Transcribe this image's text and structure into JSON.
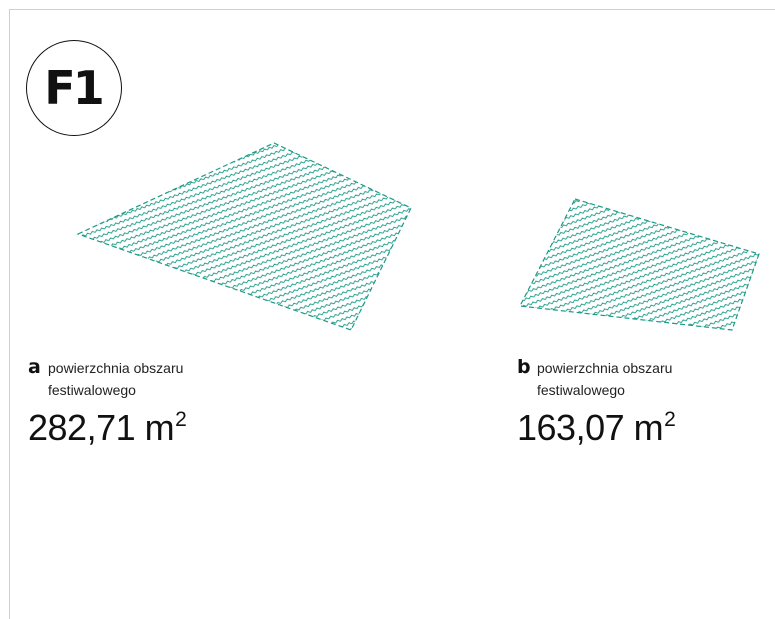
{
  "badge": {
    "text": "F1"
  },
  "pattern_color": "#1a9a87",
  "areas": [
    {
      "letter": "a",
      "label_line1": "powierzchnia obszaru",
      "label_line2": "festiwalowego",
      "value": "282,71",
      "unit": "m",
      "unit_exp": "2"
    },
    {
      "letter": "b",
      "label_line1": "powierzchnia obszaru",
      "label_line2": "festiwalowego",
      "value": "163,07",
      "unit": "m",
      "unit_exp": "2"
    }
  ]
}
